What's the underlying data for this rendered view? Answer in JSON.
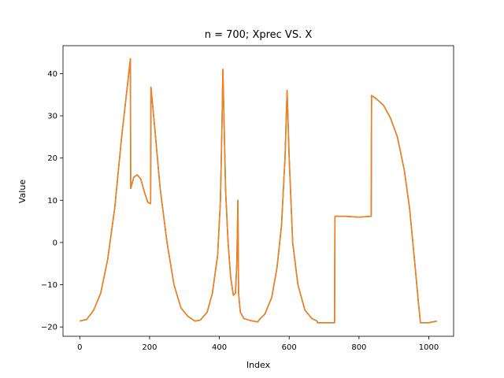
{
  "chart_data": {
    "type": "line",
    "title": "n = 700; Xprec VS. X",
    "xlabel": "Index",
    "ylabel": "Value",
    "xlim": [
      -48,
      1071
    ],
    "ylim": [
      -22.2,
      46.6
    ],
    "xticks": [
      0,
      200,
      400,
      600,
      800,
      1000
    ],
    "yticks": [
      -20,
      -10,
      0,
      10,
      20,
      30,
      40
    ],
    "grid": false,
    "legend": "none",
    "colors": {
      "X": "#1f77b4",
      "Xprec": "#ff7f0e"
    },
    "series": [
      {
        "key": "X",
        "points": [
          [
            0,
            -18.6
          ],
          [
            20,
            -18.2
          ],
          [
            40,
            -16.0
          ],
          [
            60,
            -12.0
          ],
          [
            80,
            -4.0
          ],
          [
            100,
            8.0
          ],
          [
            120,
            25.0
          ],
          [
            135,
            36.0
          ],
          [
            145,
            43.5
          ],
          [
            146,
            12.8
          ],
          [
            155,
            15.5
          ],
          [
            165,
            16.0
          ],
          [
            175,
            15.0
          ],
          [
            185,
            12.0
          ],
          [
            195,
            9.5
          ],
          [
            203,
            9.2
          ],
          [
            204,
            36.8
          ],
          [
            215,
            27.0
          ],
          [
            230,
            13.0
          ],
          [
            250,
            0.0
          ],
          [
            270,
            -10.0
          ],
          [
            290,
            -15.5
          ],
          [
            310,
            -17.5
          ],
          [
            330,
            -18.6
          ],
          [
            345,
            -18.4
          ],
          [
            365,
            -16.5
          ],
          [
            380,
            -12.0
          ],
          [
            395,
            -3.0
          ],
          [
            403,
            10.0
          ],
          [
            408,
            30.0
          ],
          [
            410,
            41.0
          ],
          [
            413,
            30.0
          ],
          [
            418,
            12.0
          ],
          [
            425,
            0.0
          ],
          [
            432,
            -8.0
          ],
          [
            440,
            -12.5
          ],
          [
            446,
            -12.0
          ],
          [
            450,
            -5.0
          ],
          [
            453,
            10.0
          ],
          [
            455,
            -12.0
          ],
          [
            460,
            -16.5
          ],
          [
            470,
            -18.0
          ],
          [
            490,
            -18.5
          ],
          [
            510,
            -18.8
          ],
          [
            515,
            -18.2
          ],
          [
            530,
            -17.0
          ],
          [
            550,
            -13.0
          ],
          [
            565,
            -6.0
          ],
          [
            578,
            4.0
          ],
          [
            588,
            20.0
          ],
          [
            594,
            36.0
          ],
          [
            600,
            20.0
          ],
          [
            610,
            0.0
          ],
          [
            625,
            -10.0
          ],
          [
            645,
            -16.0
          ],
          [
            665,
            -18.0
          ],
          [
            680,
            -18.6
          ],
          [
            681,
            -19.0
          ],
          [
            700,
            -19.0
          ],
          [
            730,
            -19.0
          ],
          [
            731,
            6.2
          ],
          [
            760,
            6.2
          ],
          [
            800,
            6.0
          ],
          [
            835,
            6.2
          ],
          [
            836,
            34.8
          ],
          [
            850,
            34.0
          ],
          [
            870,
            32.5
          ],
          [
            890,
            29.5
          ],
          [
            910,
            25.0
          ],
          [
            930,
            17.0
          ],
          [
            945,
            8.0
          ],
          [
            960,
            -5.0
          ],
          [
            970,
            -14.0
          ],
          [
            976,
            -19.0
          ],
          [
            1000,
            -19.0
          ],
          [
            1023,
            -18.6
          ]
        ]
      },
      {
        "key": "Xprec",
        "points": [
          [
            0,
            -18.6
          ],
          [
            20,
            -18.2
          ],
          [
            40,
            -16.0
          ],
          [
            60,
            -12.0
          ],
          [
            80,
            -4.0
          ],
          [
            100,
            8.0
          ],
          [
            120,
            25.0
          ],
          [
            135,
            36.0
          ],
          [
            145,
            43.5
          ],
          [
            146,
            12.8
          ],
          [
            155,
            15.5
          ],
          [
            165,
            16.0
          ],
          [
            175,
            15.0
          ],
          [
            185,
            12.0
          ],
          [
            195,
            9.5
          ],
          [
            203,
            9.2
          ],
          [
            204,
            36.8
          ],
          [
            215,
            27.0
          ],
          [
            230,
            13.0
          ],
          [
            250,
            0.0
          ],
          [
            270,
            -10.0
          ],
          [
            290,
            -15.5
          ],
          [
            310,
            -17.5
          ],
          [
            330,
            -18.6
          ],
          [
            345,
            -18.4
          ],
          [
            365,
            -16.5
          ],
          [
            380,
            -12.0
          ],
          [
            395,
            -3.0
          ],
          [
            403,
            10.0
          ],
          [
            408,
            30.0
          ],
          [
            410,
            41.0
          ],
          [
            413,
            30.0
          ],
          [
            418,
            12.0
          ],
          [
            425,
            0.0
          ],
          [
            432,
            -8.0
          ],
          [
            440,
            -12.5
          ],
          [
            446,
            -12.0
          ],
          [
            450,
            -5.0
          ],
          [
            453,
            10.0
          ],
          [
            455,
            -12.0
          ],
          [
            460,
            -16.5
          ],
          [
            470,
            -18.0
          ],
          [
            490,
            -18.5
          ],
          [
            510,
            -18.8
          ],
          [
            515,
            -18.2
          ],
          [
            530,
            -17.0
          ],
          [
            550,
            -13.0
          ],
          [
            565,
            -6.0
          ],
          [
            578,
            4.0
          ],
          [
            588,
            20.0
          ],
          [
            594,
            36.0
          ],
          [
            600,
            20.0
          ],
          [
            610,
            0.0
          ],
          [
            625,
            -10.0
          ],
          [
            645,
            -16.0
          ],
          [
            665,
            -18.0
          ],
          [
            680,
            -18.6
          ],
          [
            681,
            -19.0
          ],
          [
            700,
            -19.0
          ],
          [
            730,
            -19.0
          ],
          [
            731,
            6.2
          ],
          [
            760,
            6.2
          ],
          [
            800,
            6.0
          ],
          [
            835,
            6.2
          ],
          [
            836,
            34.8
          ],
          [
            850,
            34.0
          ],
          [
            870,
            32.5
          ],
          [
            890,
            29.5
          ],
          [
            910,
            25.0
          ],
          [
            930,
            17.0
          ],
          [
            945,
            8.0
          ],
          [
            960,
            -5.0
          ],
          [
            970,
            -14.0
          ],
          [
            976,
            -19.0
          ],
          [
            1000,
            -19.0
          ],
          [
            1023,
            -18.6
          ]
        ]
      }
    ]
  }
}
